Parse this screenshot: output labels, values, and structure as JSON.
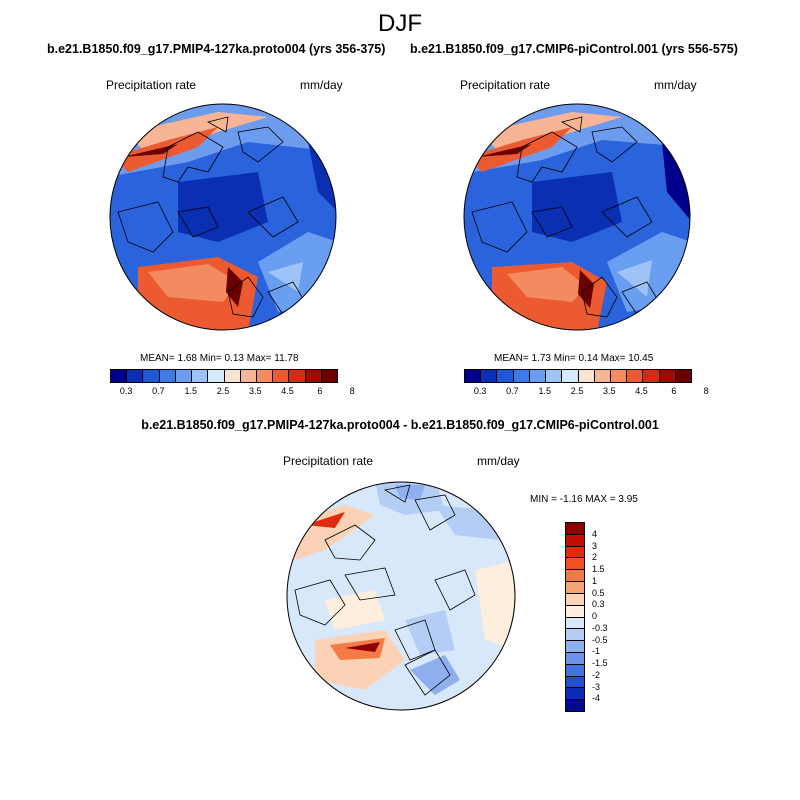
{
  "page": {
    "title": "DJF"
  },
  "panels": [
    {
      "run_title": "b.e21.B1850.f09_g17.PMIP4-127ka.proto004 (yrs 356-375)",
      "variable": "Precipitation rate",
      "units": "mm/day",
      "stats": {
        "mean_label": "MEAN=",
        "mean": "1.68",
        "min_label": "Min=",
        "min": "0.13",
        "max_label": "Max=",
        "max": "11.78"
      }
    },
    {
      "run_title": "b.e21.B1850.f09_g17.CMIP6-piControl.001 (yrs 556-575)",
      "variable": "Precipitation rate",
      "units": "mm/day",
      "stats": {
        "mean_label": "MEAN=",
        "mean": "1.73",
        "min_label": "Min=",
        "min": "0.14",
        "max_label": "Max=",
        "max": "10.45"
      }
    }
  ],
  "colorbar": {
    "colors": [
      "#00008c",
      "#0b2fb3",
      "#1f57d9",
      "#3d7ae8",
      "#6a9ef0",
      "#9fc3f7",
      "#d6e8fb",
      "#fbe2d3",
      "#f7b596",
      "#f48a60",
      "#ec5a31",
      "#d42a0f",
      "#a00a04",
      "#6b0000"
    ],
    "tick_labels": [
      "0.3",
      "0.7",
      "1.5",
      "2.5",
      "3.5",
      "4.5",
      "6",
      "8"
    ]
  },
  "difference": {
    "title": "b.e21.B1850.f09_g17.PMIP4-127ka.proto004 - b.e21.B1850.f09_g17.CMIP6-piControl.001",
    "variable": "Precipitation rate",
    "units": "mm/day",
    "minmax": {
      "min_label": "MIN =",
      "min": "-1.16",
      "max_label": "MAX =",
      "max": "3.95"
    },
    "colorbar": {
      "colors": [
        "#8c0000",
        "#c01005",
        "#e02a0c",
        "#f2501f",
        "#f57a45",
        "#f7a575",
        "#fbd2b5",
        "#fdeede",
        "#d8e8fb",
        "#b4cdf4",
        "#8eb0ee",
        "#6a92e6",
        "#4373de",
        "#2150cf",
        "#0c2ab4",
        "#000a8c"
      ],
      "tick_labels": [
        "4",
        "3",
        "2",
        "1.5",
        "1",
        "0.5",
        "0.3",
        "0",
        "-0.3",
        "-0.5",
        "-1",
        "-1.5",
        "-2",
        "-3",
        "-4"
      ]
    }
  }
}
